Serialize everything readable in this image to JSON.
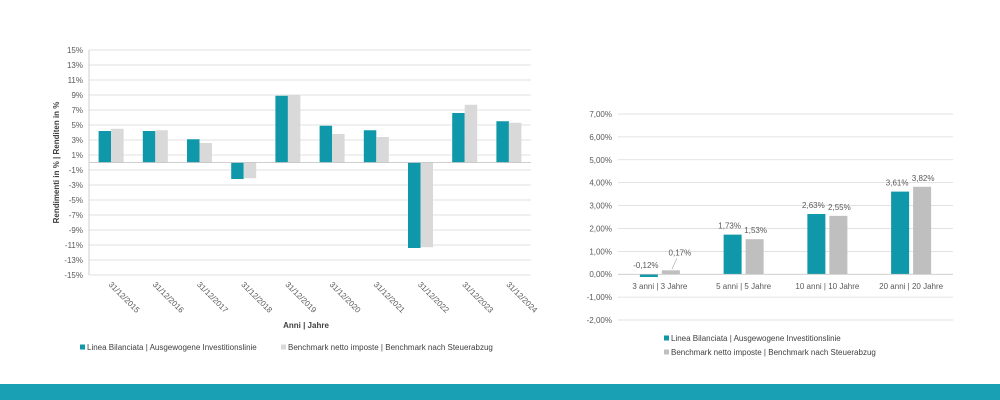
{
  "colors": {
    "grid": "#d9d9d9",
    "axis": "#bfbfbf",
    "footer_band": "#1aa0b4"
  },
  "chart_data": [
    {
      "type": "bar",
      "title": "",
      "xlabel": "Anni | Jahre",
      "ylabel": "Rendimenti in % | Renditen in %",
      "categories": [
        "31/12/2015",
        "31/12/2016",
        "31/12/2017",
        "31/12/2018",
        "31/12/2019",
        "31/12/2020",
        "31/12/2021",
        "31/12/2022",
        "31/12/2023",
        "31/12/2024"
      ],
      "series": [
        {
          "name": "Linea Bilanciata | Ausgewogene Investitionslinie",
          "color": "#0f98aa",
          "values": [
            4.2,
            4.2,
            3.1,
            -2.2,
            8.9,
            4.9,
            4.3,
            -11.4,
            6.6,
            5.5
          ]
        },
        {
          "name": "Benchmark netto imposte | Benchmark nach Steuerabzug",
          "color": "#d9d9d9",
          "values": [
            4.5,
            4.3,
            2.6,
            -2.1,
            9.0,
            3.8,
            3.4,
            -11.3,
            7.7,
            5.3
          ]
        }
      ],
      "ylim": [
        -15,
        15
      ],
      "yticks": [
        15,
        13,
        11,
        9,
        7,
        5,
        3,
        1,
        -1,
        -3,
        -5,
        -7,
        -9,
        -11,
        -13,
        -15
      ],
      "ytick_labels": [
        "15%",
        "13%",
        "11%",
        "9%",
        "7%",
        "5%",
        "3%",
        "1%",
        "-1%",
        "-3%",
        "-5%",
        "-7%",
        "-9%",
        "-11%",
        "-13%",
        "-15%"
      ],
      "grid": true
    },
    {
      "type": "bar",
      "title": "",
      "xlabel": "",
      "ylabel": "",
      "categories": [
        "3 anni | 3 Jahre",
        "5 anni | 5 Jahre",
        "10 anni | 10 Jahre",
        "20 anni | 20 Jahre"
      ],
      "series": [
        {
          "name": "Linea Bilanciata | Ausgewogene Investitionslinie",
          "color": "#0f98aa",
          "values": [
            -0.12,
            1.73,
            2.63,
            3.61
          ],
          "data_labels": [
            "-0,12%",
            "1,73%",
            "2,63%",
            "3,61%"
          ]
        },
        {
          "name": "Benchmark netto imposte | Benchmark nach Steuerabzug",
          "color": "#bfbfbf",
          "values": [
            0.17,
            1.53,
            2.55,
            3.82
          ],
          "data_labels": [
            "0,17%",
            "1,53%",
            "2,55%",
            "3,82%"
          ]
        }
      ],
      "ylim": [
        -2,
        7
      ],
      "yticks": [
        7,
        6,
        5,
        4,
        3,
        2,
        1,
        0,
        -1,
        -2
      ],
      "ytick_labels": [
        "7,00%",
        "6,00%",
        "5,00%",
        "4,00%",
        "3,00%",
        "2,00%",
        "1,00%",
        "0,00%",
        "-1,00%",
        "-2,00%"
      ],
      "grid": true
    }
  ]
}
